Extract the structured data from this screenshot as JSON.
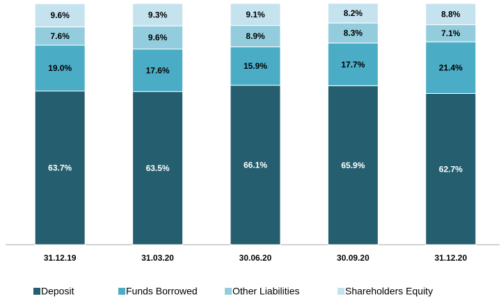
{
  "chart_data": {
    "type": "stacked_bar",
    "categories": [
      "31.12.19",
      "31.03.20",
      "30.06.20",
      "30.09.20",
      "31.12.20"
    ],
    "series": [
      {
        "name": "Deposit",
        "color": "#255e6e",
        "values": [
          63.7,
          63.5,
          66.1,
          65.9,
          62.7
        ],
        "value_labels": [
          "63.7%",
          "63.5%",
          "66.1%",
          "65.9%",
          "62.7%"
        ]
      },
      {
        "name": "Funds Borrowed",
        "color": "#4bacc6",
        "values": [
          19.0,
          17.6,
          15.9,
          17.7,
          21.4
        ],
        "value_labels": [
          "19.0%",
          "17.6%",
          "15.9%",
          "17.7%",
          "21.4%"
        ]
      },
      {
        "name": "Other Liabilities",
        "color": "#93cddd",
        "values": [
          7.6,
          9.6,
          8.9,
          8.3,
          7.1
        ],
        "value_labels": [
          "7.6%",
          "9.6%",
          "8.9%",
          "8.3%",
          "7.1%"
        ]
      },
      {
        "name": "Shareholders Equity",
        "color": "#c5e3ef",
        "values": [
          9.6,
          9.3,
          9.1,
          8.2,
          8.8
        ],
        "value_labels": [
          "9.6%",
          "9.3%",
          "9.1%",
          "8.2%",
          "8.8%"
        ]
      }
    ],
    "ylim": [
      0,
      100
    ],
    "legend": "bottom"
  }
}
